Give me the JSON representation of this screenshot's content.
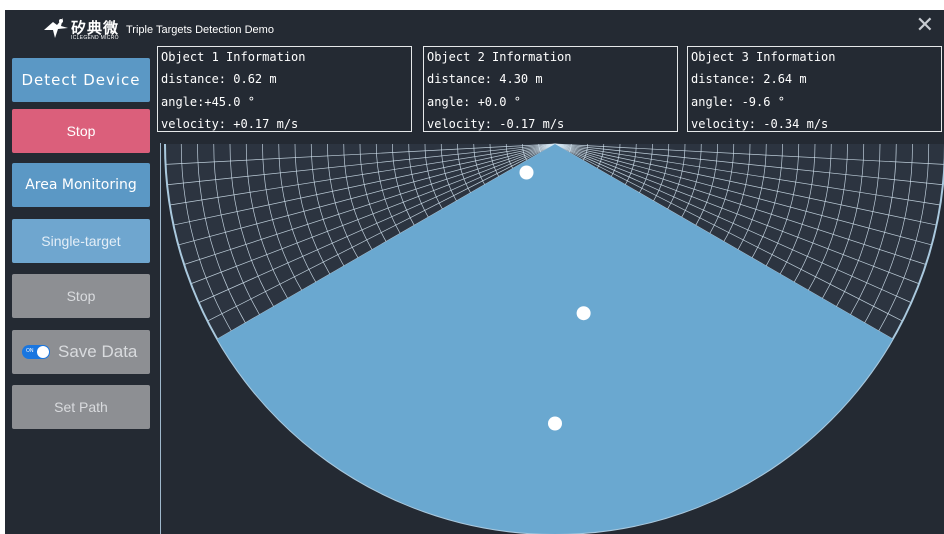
{
  "header": {
    "brand_cn": "矽典微",
    "brand_en": "ICLEGEND MICRO",
    "title": "Triple Targets Detection Demo",
    "close_glyph": "✕",
    "logo_icon": "bird-logo-icon"
  },
  "sidebar": {
    "detect_device": "Detect Device",
    "stop_1": "Stop",
    "area_monitoring": "Area Monitoring",
    "single_target": "Single-target",
    "stop_2": "Stop",
    "save_data": "Save Data",
    "save_toggle_label": "ON",
    "save_toggle_on": true,
    "set_path": "Set Path"
  },
  "objects": [
    {
      "title": "Object 1 Information",
      "distance": "distance: 0.62 m",
      "angle": "angle:+45.0 °",
      "velocity": "velocity: +0.17 m/s"
    },
    {
      "title": "Object 2 Information",
      "distance": "distance: 4.30 m",
      "angle": "angle: +0.0 °",
      "velocity": "velocity: -0.17 m/s"
    },
    {
      "title": "Object 3 Information",
      "distance": "distance: 2.64 m",
      "angle": "angle: -9.6 °",
      "velocity": "velocity: -0.34 m/s"
    }
  ],
  "radar": {
    "field_of_view_deg": [
      -60,
      60
    ],
    "max_range_m": 6,
    "targets": [
      {
        "id": 1,
        "distance_m": 0.62,
        "angle_deg": 45.0
      },
      {
        "id": 2,
        "distance_m": 4.3,
        "angle_deg": 0.0
      },
      {
        "id": 3,
        "distance_m": 2.64,
        "angle_deg": -9.6
      }
    ],
    "colors": {
      "fill": "#6aa8d0",
      "grid": "#d7e8f4",
      "border": "#aac9de",
      "target": "#ffffff"
    }
  }
}
